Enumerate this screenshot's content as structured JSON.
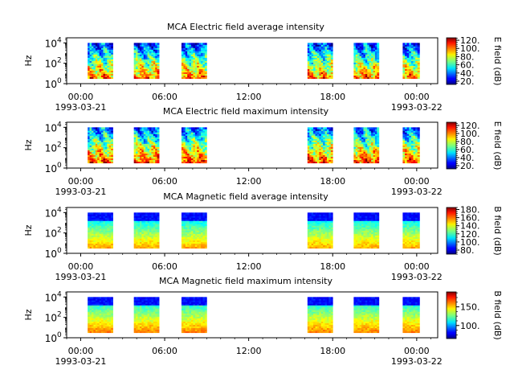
{
  "chart_data": [
    {
      "type": "heatmap",
      "title": "MCA  Electric field average intensity",
      "ylabel": "Hz",
      "ylim_log10": [
        0,
        4.5
      ],
      "y_ticks": [
        {
          "exp": 0,
          "label": "10",
          "sup": "0"
        },
        {
          "exp": 2,
          "label": "10",
          "sup": "2"
        },
        {
          "exp": 4,
          "label": "10",
          "sup": "4"
        }
      ],
      "colorbar_label": "E field (dB)",
      "colorbar_range": [
        12,
        126
      ],
      "colorbar_ticks": [
        20,
        40,
        60,
        80,
        100,
        120
      ],
      "colorbar_tick_labels": [
        "20.",
        "40.",
        "60.",
        "80.",
        "100.",
        "120."
      ],
      "pattern": "electric",
      "max_variant": false
    },
    {
      "type": "heatmap",
      "title": "MCA  Electric field maximum intensity",
      "ylabel": "Hz",
      "ylim_log10": [
        0,
        4.5
      ],
      "y_ticks": [
        {
          "exp": 0,
          "label": "10",
          "sup": "0"
        },
        {
          "exp": 2,
          "label": "10",
          "sup": "2"
        },
        {
          "exp": 4,
          "label": "10",
          "sup": "4"
        }
      ],
      "colorbar_label": "E field (dB)",
      "colorbar_range": [
        12,
        128
      ],
      "colorbar_ticks": [
        20,
        40,
        60,
        80,
        100,
        120
      ],
      "colorbar_tick_labels": [
        "20.",
        "40.",
        "60.",
        "80.",
        "100.",
        "120."
      ],
      "pattern": "electric",
      "max_variant": true
    },
    {
      "type": "heatmap",
      "title": "MCA  Magnetic field average intensity",
      "ylabel": "Hz",
      "ylim_log10": [
        0,
        4.5
      ],
      "y_ticks": [
        {
          "exp": 0,
          "label": "10",
          "sup": "0"
        },
        {
          "exp": 2,
          "label": "10",
          "sup": "2"
        },
        {
          "exp": 4,
          "label": "10",
          "sup": "4"
        }
      ],
      "colorbar_label": "B field (dB)",
      "colorbar_range": [
        70,
        185
      ],
      "colorbar_ticks": [
        80,
        100,
        120,
        140,
        160,
        180
      ],
      "colorbar_tick_labels": [
        "80.",
        "100.",
        "120.",
        "140.",
        "160.",
        "180."
      ],
      "pattern": "magnetic",
      "max_variant": false
    },
    {
      "type": "heatmap",
      "title": "MCA  Magnetic field maximum intensity",
      "ylabel": "Hz",
      "ylim_log10": [
        0,
        4.5
      ],
      "y_ticks": [
        {
          "exp": 0,
          "label": "10",
          "sup": "0"
        },
        {
          "exp": 2,
          "label": "10",
          "sup": "2"
        },
        {
          "exp": 4,
          "label": "10",
          "sup": "4"
        }
      ],
      "colorbar_label": "B field (dB)",
      "colorbar_range": [
        65,
        190
      ],
      "colorbar_ticks": [
        100,
        150
      ],
      "colorbar_tick_labels": [
        "100.",
        "150."
      ],
      "pattern": "magnetic",
      "max_variant": true
    }
  ],
  "shared_x": {
    "xlim_hours": [
      -1,
      25.5
    ],
    "ticks": [
      {
        "hour": 0,
        "label": "00:00",
        "date": "1993-03-21"
      },
      {
        "hour": 6,
        "label": "06:00",
        "date": ""
      },
      {
        "hour": 12,
        "label": "12:00",
        "date": ""
      },
      {
        "hour": 18,
        "label": "18:00",
        "date": ""
      },
      {
        "hour": 24,
        "label": "00:00",
        "date": "1993-03-22"
      }
    ],
    "minor_tick_step_hours": 1
  },
  "data_segments_hours": [
    {
      "start": 0.5,
      "end": 2.3
    },
    {
      "start": 3.8,
      "end": 5.6
    },
    {
      "start": 7.2,
      "end": 9.0
    },
    {
      "start": 16.2,
      "end": 18.0
    },
    {
      "start": 19.5,
      "end": 21.3
    },
    {
      "start": 23.0,
      "end": 24.2
    }
  ],
  "frequency_band_log10": [
    0.5,
    4.0
  ]
}
